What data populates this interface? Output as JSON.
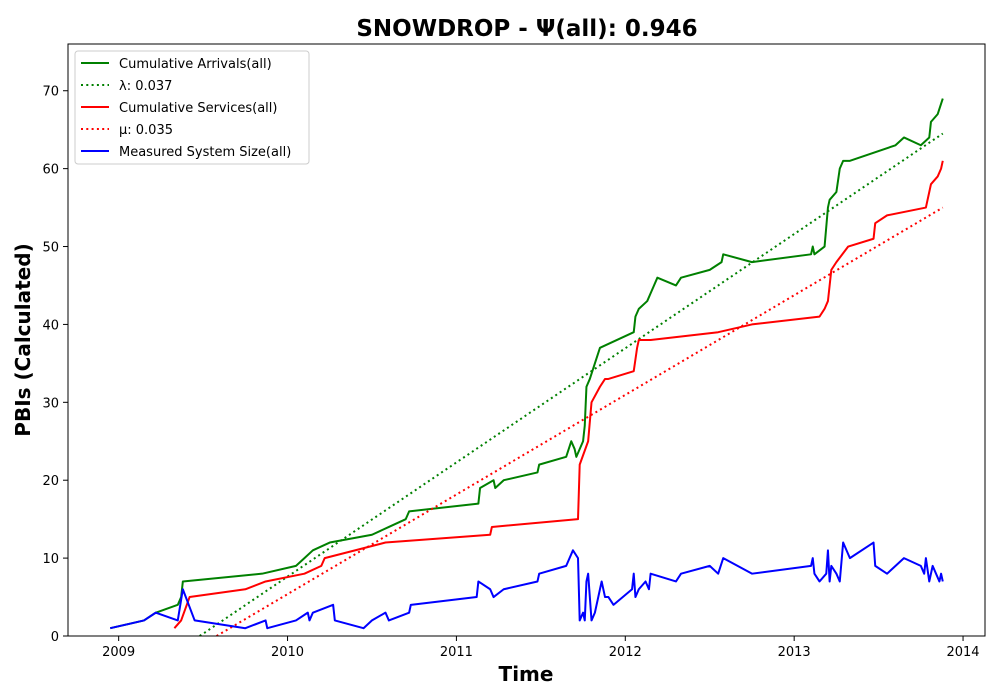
{
  "chart_data": {
    "type": "line",
    "title": "SNOWDROP -  Ψ(all): 0.946",
    "xlabel": "Time",
    "ylabel": "PBIs (Calculated)",
    "xlim": [
      2008.7,
      2014.13
    ],
    "ylim": [
      0,
      76
    ],
    "xticks": [
      2009,
      2010,
      2011,
      2012,
      2013,
      2014
    ],
    "yticks": [
      0,
      10,
      20,
      30,
      40,
      50,
      60,
      70
    ],
    "legend_position": "top-left",
    "grid": false,
    "series": [
      {
        "name": "Cumulative Arrivals(all)",
        "style": "solid",
        "color": "#008000",
        "x": [
          2008.95,
          2009.15,
          2009.22,
          2009.35,
          2009.37,
          2009.38,
          2009.85,
          2010.05,
          2010.1,
          2010.15,
          2010.25,
          2010.5,
          2010.6,
          2010.7,
          2010.72,
          2011.13,
          2011.14,
          2011.22,
          2011.23,
          2011.28,
          2011.48,
          2011.49,
          2011.65,
          2011.68,
          2011.7,
          2011.71,
          2011.75,
          2011.76,
          2011.77,
          2011.79,
          2011.82,
          2011.85,
          2012.05,
          2012.06,
          2012.08,
          2012.13,
          2012.15,
          2012.17,
          2012.19,
          2012.3,
          2012.33,
          2012.5,
          2012.57,
          2012.58,
          2012.75,
          2013.1,
          2013.11,
          2013.12,
          2013.18,
          2013.2,
          2013.21,
          2013.25,
          2013.27,
          2013.29,
          2013.33,
          2013.6,
          2013.65,
          2013.75,
          2013.8,
          2013.81,
          2013.85,
          2013.88
        ],
        "values": [
          1,
          2,
          3,
          4,
          5,
          7,
          8,
          9,
          10,
          11,
          12,
          13,
          14,
          15,
          16,
          17,
          19,
          20,
          19,
          20,
          21,
          22,
          23,
          25,
          24,
          23,
          25,
          27,
          32,
          33,
          35,
          37,
          39,
          41,
          42,
          43,
          44,
          45,
          46,
          45,
          46,
          47,
          48,
          49,
          48,
          49,
          50,
          49,
          50,
          55,
          56,
          57,
          60,
          61,
          61,
          63,
          64,
          63,
          64,
          66,
          67,
          69
        ]
      },
      {
        "name": "λ: 0.037",
        "style": "dotted",
        "color": "#008000",
        "x": [
          2009.48,
          2013.88
        ],
        "values": [
          0,
          64.5
        ]
      },
      {
        "name": "Cumulative Services(all)",
        "style": "solid",
        "color": "#ff0000",
        "x": [
          2009.33,
          2009.37,
          2009.42,
          2009.75,
          2009.87,
          2010.1,
          2010.2,
          2010.22,
          2010.58,
          2011.2,
          2011.21,
          2011.72,
          2011.73,
          2011.78,
          2011.8,
          2011.85,
          2011.88,
          2011.9,
          2012.05,
          2012.07,
          2012.08,
          2012.15,
          2012.55,
          2012.75,
          2013.15,
          2013.18,
          2013.2,
          2013.22,
          2013.25,
          2013.32,
          2013.47,
          2013.48,
          2013.55,
          2013.78,
          2013.8,
          2013.81,
          2013.85,
          2013.87,
          2013.88
        ],
        "values": [
          1,
          2,
          5,
          6,
          7,
          8,
          9,
          10,
          12,
          13,
          14,
          15,
          22,
          25,
          30,
          32,
          33,
          33,
          34,
          37,
          38,
          38,
          39,
          40,
          41,
          42,
          43,
          47,
          48,
          50,
          51,
          53,
          54,
          55,
          57,
          58,
          59,
          60,
          61
        ]
      },
      {
        "name": "μ: 0.035",
        "style": "dotted",
        "color": "#ff0000",
        "x": [
          2009.58,
          2013.88
        ],
        "values": [
          0,
          55
        ]
      },
      {
        "name": "Measured System Size(all)",
        "style": "solid",
        "color": "#0000ff",
        "x": [
          2008.95,
          2009.15,
          2009.22,
          2009.35,
          2009.38,
          2009.45,
          2009.75,
          2009.87,
          2009.88,
          2010.05,
          2010.12,
          2010.13,
          2010.15,
          2010.27,
          2010.28,
          2010.45,
          2010.5,
          2010.58,
          2010.6,
          2010.72,
          2010.73,
          2011.12,
          2011.13,
          2011.2,
          2011.22,
          2011.28,
          2011.48,
          2011.49,
          2011.65,
          2011.69,
          2011.72,
          2011.73,
          2011.75,
          2011.76,
          2011.77,
          2011.78,
          2011.8,
          2011.82,
          2011.84,
          2011.85,
          2011.86,
          2011.88,
          2011.9,
          2011.93,
          2012.04,
          2012.05,
          2012.06,
          2012.08,
          2012.12,
          2012.14,
          2012.15,
          2012.3,
          2012.33,
          2012.5,
          2012.55,
          2012.58,
          2012.75,
          2013.1,
          2013.11,
          2013.12,
          2013.15,
          2013.19,
          2013.2,
          2013.21,
          2013.22,
          2013.25,
          2013.27,
          2013.29,
          2013.33,
          2013.47,
          2013.48,
          2013.55,
          2013.65,
          2013.75,
          2013.77,
          2013.78,
          2013.8,
          2013.82,
          2013.84,
          2013.86,
          2013.87,
          2013.88
        ],
        "values": [
          1,
          2,
          3,
          2,
          6,
          2,
          1,
          2,
          1,
          2,
          3,
          2,
          3,
          4,
          2,
          1,
          2,
          3,
          2,
          3,
          4,
          5,
          7,
          6,
          5,
          6,
          7,
          8,
          9,
          11,
          10,
          2,
          3,
          2,
          7,
          8,
          2,
          3,
          5,
          6,
          7,
          5,
          5,
          4,
          6,
          8,
          5,
          6,
          7,
          6,
          8,
          7,
          8,
          9,
          8,
          10,
          8,
          9,
          10,
          8,
          7,
          8,
          11,
          7,
          9,
          8,
          7,
          12,
          10,
          12,
          9,
          8,
          10,
          9,
          8,
          10,
          7,
          9,
          8,
          7,
          8,
          7
        ]
      }
    ]
  }
}
